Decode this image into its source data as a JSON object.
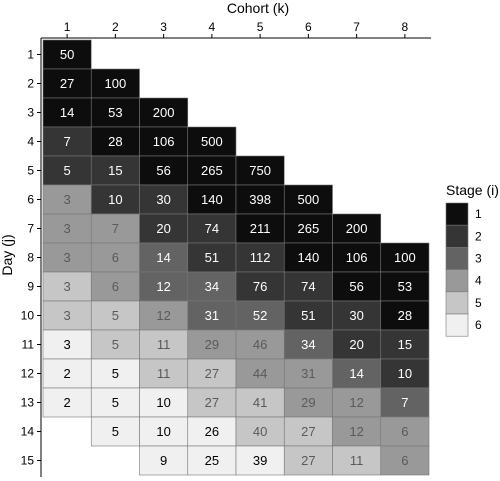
{
  "chart_data": {
    "type": "heatmap",
    "title": "",
    "xlabel": "Cohort (k)",
    "ylabel": "Day (j)",
    "x_categories": [
      "1",
      "2",
      "3",
      "4",
      "5",
      "6",
      "7",
      "8"
    ],
    "y_categories": [
      "1",
      "2",
      "3",
      "4",
      "5",
      "6",
      "7",
      "8",
      "9",
      "10",
      "11",
      "12",
      "13",
      "14",
      "15"
    ],
    "x_axis_position": "top",
    "legend": {
      "title": "Stage (i)",
      "position": "right",
      "levels": [
        {
          "label": "1",
          "color": "#0d0d0d"
        },
        {
          "label": "2",
          "color": "#353535"
        },
        {
          "label": "3",
          "color": "#636363"
        },
        {
          "label": "4",
          "color": "#999999"
        },
        {
          "label": "5",
          "color": "#c6c6c6"
        },
        {
          "label": "6",
          "color": "#f0f0f0"
        }
      ]
    },
    "cells": [
      {
        "day": 1,
        "cohort": 1,
        "value": 50,
        "stage": 1
      },
      {
        "day": 2,
        "cohort": 1,
        "value": 27,
        "stage": 1
      },
      {
        "day": 2,
        "cohort": 2,
        "value": 100,
        "stage": 1
      },
      {
        "day": 3,
        "cohort": 1,
        "value": 14,
        "stage": 1
      },
      {
        "day": 3,
        "cohort": 2,
        "value": 53,
        "stage": 1
      },
      {
        "day": 3,
        "cohort": 3,
        "value": 200,
        "stage": 1
      },
      {
        "day": 4,
        "cohort": 1,
        "value": 7,
        "stage": 2
      },
      {
        "day": 4,
        "cohort": 2,
        "value": 28,
        "stage": 1
      },
      {
        "day": 4,
        "cohort": 3,
        "value": 106,
        "stage": 1
      },
      {
        "day": 4,
        "cohort": 4,
        "value": 500,
        "stage": 1
      },
      {
        "day": 5,
        "cohort": 1,
        "value": 5,
        "stage": 2
      },
      {
        "day": 5,
        "cohort": 2,
        "value": 15,
        "stage": 2
      },
      {
        "day": 5,
        "cohort": 3,
        "value": 56,
        "stage": 1
      },
      {
        "day": 5,
        "cohort": 4,
        "value": 265,
        "stage": 1
      },
      {
        "day": 5,
        "cohort": 5,
        "value": 750,
        "stage": 1
      },
      {
        "day": 6,
        "cohort": 1,
        "value": 3,
        "stage": 4
      },
      {
        "day": 6,
        "cohort": 2,
        "value": 10,
        "stage": 2
      },
      {
        "day": 6,
        "cohort": 3,
        "value": 30,
        "stage": 2
      },
      {
        "day": 6,
        "cohort": 4,
        "value": 140,
        "stage": 1
      },
      {
        "day": 6,
        "cohort": 5,
        "value": 398,
        "stage": 1
      },
      {
        "day": 6,
        "cohort": 6,
        "value": 500,
        "stage": 1
      },
      {
        "day": 7,
        "cohort": 1,
        "value": 3,
        "stage": 4
      },
      {
        "day": 7,
        "cohort": 2,
        "value": 7,
        "stage": 4
      },
      {
        "day": 7,
        "cohort": 3,
        "value": 20,
        "stage": 2
      },
      {
        "day": 7,
        "cohort": 4,
        "value": 74,
        "stage": 2
      },
      {
        "day": 7,
        "cohort": 5,
        "value": 211,
        "stage": 1
      },
      {
        "day": 7,
        "cohort": 6,
        "value": 265,
        "stage": 1
      },
      {
        "day": 7,
        "cohort": 7,
        "value": 200,
        "stage": 1
      },
      {
        "day": 8,
        "cohort": 1,
        "value": 3,
        "stage": 4
      },
      {
        "day": 8,
        "cohort": 2,
        "value": 6,
        "stage": 4
      },
      {
        "day": 8,
        "cohort": 3,
        "value": 14,
        "stage": 3
      },
      {
        "day": 8,
        "cohort": 4,
        "value": 51,
        "stage": 2
      },
      {
        "day": 8,
        "cohort": 5,
        "value": 112,
        "stage": 2
      },
      {
        "day": 8,
        "cohort": 6,
        "value": 140,
        "stage": 1
      },
      {
        "day": 8,
        "cohort": 7,
        "value": 106,
        "stage": 1
      },
      {
        "day": 8,
        "cohort": 8,
        "value": 100,
        "stage": 1
      },
      {
        "day": 9,
        "cohort": 1,
        "value": 3,
        "stage": 5
      },
      {
        "day": 9,
        "cohort": 2,
        "value": 6,
        "stage": 4
      },
      {
        "day": 9,
        "cohort": 3,
        "value": 12,
        "stage": 3
      },
      {
        "day": 9,
        "cohort": 4,
        "value": 34,
        "stage": 3
      },
      {
        "day": 9,
        "cohort": 5,
        "value": 76,
        "stage": 2
      },
      {
        "day": 9,
        "cohort": 6,
        "value": 74,
        "stage": 2
      },
      {
        "day": 9,
        "cohort": 7,
        "value": 56,
        "stage": 1
      },
      {
        "day": 9,
        "cohort": 8,
        "value": 53,
        "stage": 1
      },
      {
        "day": 10,
        "cohort": 1,
        "value": 3,
        "stage": 5
      },
      {
        "day": 10,
        "cohort": 2,
        "value": 5,
        "stage": 5
      },
      {
        "day": 10,
        "cohort": 3,
        "value": 12,
        "stage": 4
      },
      {
        "day": 10,
        "cohort": 4,
        "value": 31,
        "stage": 3
      },
      {
        "day": 10,
        "cohort": 5,
        "value": 52,
        "stage": 3
      },
      {
        "day": 10,
        "cohort": 6,
        "value": 51,
        "stage": 2
      },
      {
        "day": 10,
        "cohort": 7,
        "value": 30,
        "stage": 2
      },
      {
        "day": 10,
        "cohort": 8,
        "value": 28,
        "stage": 1
      },
      {
        "day": 11,
        "cohort": 1,
        "value": 3,
        "stage": 6
      },
      {
        "day": 11,
        "cohort": 2,
        "value": 5,
        "stage": 5
      },
      {
        "day": 11,
        "cohort": 3,
        "value": 11,
        "stage": 5
      },
      {
        "day": 11,
        "cohort": 4,
        "value": 29,
        "stage": 4
      },
      {
        "day": 11,
        "cohort": 5,
        "value": 46,
        "stage": 4
      },
      {
        "day": 11,
        "cohort": 6,
        "value": 34,
        "stage": 3
      },
      {
        "day": 11,
        "cohort": 7,
        "value": 20,
        "stage": 2
      },
      {
        "day": 11,
        "cohort": 8,
        "value": 15,
        "stage": 2
      },
      {
        "day": 12,
        "cohort": 1,
        "value": 2,
        "stage": 6
      },
      {
        "day": 12,
        "cohort": 2,
        "value": 5,
        "stage": 6
      },
      {
        "day": 12,
        "cohort": 3,
        "value": 11,
        "stage": 5
      },
      {
        "day": 12,
        "cohort": 4,
        "value": 27,
        "stage": 5
      },
      {
        "day": 12,
        "cohort": 5,
        "value": 44,
        "stage": 4
      },
      {
        "day": 12,
        "cohort": 6,
        "value": 31,
        "stage": 4
      },
      {
        "day": 12,
        "cohort": 7,
        "value": 14,
        "stage": 3
      },
      {
        "day": 12,
        "cohort": 8,
        "value": 10,
        "stage": 2
      },
      {
        "day": 13,
        "cohort": 1,
        "value": 2,
        "stage": 6
      },
      {
        "day": 13,
        "cohort": 2,
        "value": 5,
        "stage": 6
      },
      {
        "day": 13,
        "cohort": 3,
        "value": 10,
        "stage": 6
      },
      {
        "day": 13,
        "cohort": 4,
        "value": 27,
        "stage": 5
      },
      {
        "day": 13,
        "cohort": 5,
        "value": 41,
        "stage": 5
      },
      {
        "day": 13,
        "cohort": 6,
        "value": 29,
        "stage": 4
      },
      {
        "day": 13,
        "cohort": 7,
        "value": 12,
        "stage": 4
      },
      {
        "day": 13,
        "cohort": 8,
        "value": 7,
        "stage": 3
      },
      {
        "day": 14,
        "cohort": 2,
        "value": 5,
        "stage": 6
      },
      {
        "day": 14,
        "cohort": 3,
        "value": 10,
        "stage": 6
      },
      {
        "day": 14,
        "cohort": 4,
        "value": 26,
        "stage": 6
      },
      {
        "day": 14,
        "cohort": 5,
        "value": 40,
        "stage": 5
      },
      {
        "day": 14,
        "cohort": 6,
        "value": 27,
        "stage": 5
      },
      {
        "day": 14,
        "cohort": 7,
        "value": 12,
        "stage": 4
      },
      {
        "day": 14,
        "cohort": 8,
        "value": 6,
        "stage": 4
      },
      {
        "day": 15,
        "cohort": 3,
        "value": 9,
        "stage": 6
      },
      {
        "day": 15,
        "cohort": 4,
        "value": 25,
        "stage": 6
      },
      {
        "day": 15,
        "cohort": 5,
        "value": 39,
        "stage": 6
      },
      {
        "day": 15,
        "cohort": 6,
        "value": 27,
        "stage": 5
      },
      {
        "day": 15,
        "cohort": 7,
        "value": 11,
        "stage": 5
      },
      {
        "day": 15,
        "cohort": 8,
        "value": 6,
        "stage": 4
      }
    ]
  }
}
